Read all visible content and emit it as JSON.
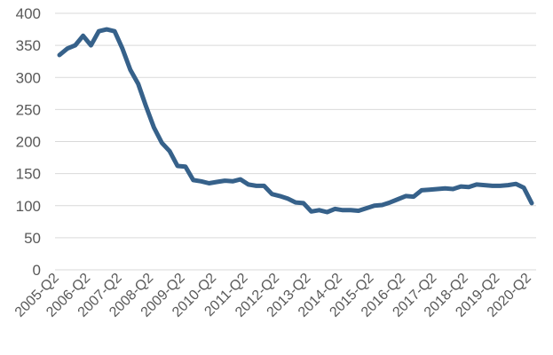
{
  "chart_data": {
    "type": "line",
    "title": "",
    "xlabel": "",
    "ylabel": "",
    "ylim": [
      0,
      400
    ],
    "y_ticks": [
      0,
      50,
      100,
      150,
      200,
      250,
      300,
      350,
      400
    ],
    "x_tick_labels": [
      "2005-Q2",
      "2006-Q2",
      "2007-Q2",
      "2008-Q2",
      "2009-Q2",
      "2010-Q2",
      "2011-Q2",
      "2012-Q2",
      "2013-Q2",
      "2014-Q2",
      "2015-Q2",
      "2016-Q2",
      "2017-Q2",
      "2018-Q2",
      "2019-Q2",
      "2020-Q2"
    ],
    "grid": true,
    "legend": "none",
    "series_color": "#36618a",
    "grid_color": "#d9d9d9",
    "text_color": "#595959",
    "x": [
      "2005-Q2",
      "2005-Q3",
      "2005-Q4",
      "2006-Q1",
      "2006-Q2",
      "2006-Q3",
      "2006-Q4",
      "2007-Q1",
      "2007-Q2",
      "2007-Q3",
      "2007-Q4",
      "2008-Q1",
      "2008-Q2",
      "2008-Q3",
      "2008-Q4",
      "2009-Q1",
      "2009-Q2",
      "2009-Q3",
      "2009-Q4",
      "2010-Q1",
      "2010-Q2",
      "2010-Q3",
      "2010-Q4",
      "2011-Q1",
      "2011-Q2",
      "2011-Q3",
      "2011-Q4",
      "2012-Q1",
      "2012-Q2",
      "2012-Q3",
      "2012-Q4",
      "2013-Q1",
      "2013-Q2",
      "2013-Q3",
      "2013-Q4",
      "2014-Q1",
      "2014-Q2",
      "2014-Q3",
      "2014-Q4",
      "2015-Q1",
      "2015-Q2",
      "2015-Q3",
      "2015-Q4",
      "2016-Q1",
      "2016-Q2",
      "2016-Q3",
      "2016-Q4",
      "2017-Q1",
      "2017-Q2",
      "2017-Q3",
      "2017-Q4",
      "2018-Q1",
      "2018-Q2",
      "2018-Q3",
      "2018-Q4",
      "2019-Q1",
      "2019-Q2",
      "2019-Q3",
      "2019-Q4",
      "2020-Q1",
      "2020-Q2"
    ],
    "series": [
      {
        "values": [
          335,
          345,
          350,
          365,
          350,
          372,
          375,
          372,
          345,
          312,
          290,
          255,
          222,
          198,
          185,
          162,
          161,
          140,
          138,
          135,
          137,
          139,
          138,
          141,
          133,
          131,
          131,
          118,
          115,
          111,
          105,
          104,
          91,
          93,
          90,
          95,
          93,
          93,
          92,
          96,
          100,
          101,
          105,
          110,
          115,
          114,
          124,
          125,
          126,
          127,
          126,
          130,
          129,
          133,
          132,
          131,
          131,
          132,
          134,
          128,
          104
        ]
      }
    ]
  }
}
